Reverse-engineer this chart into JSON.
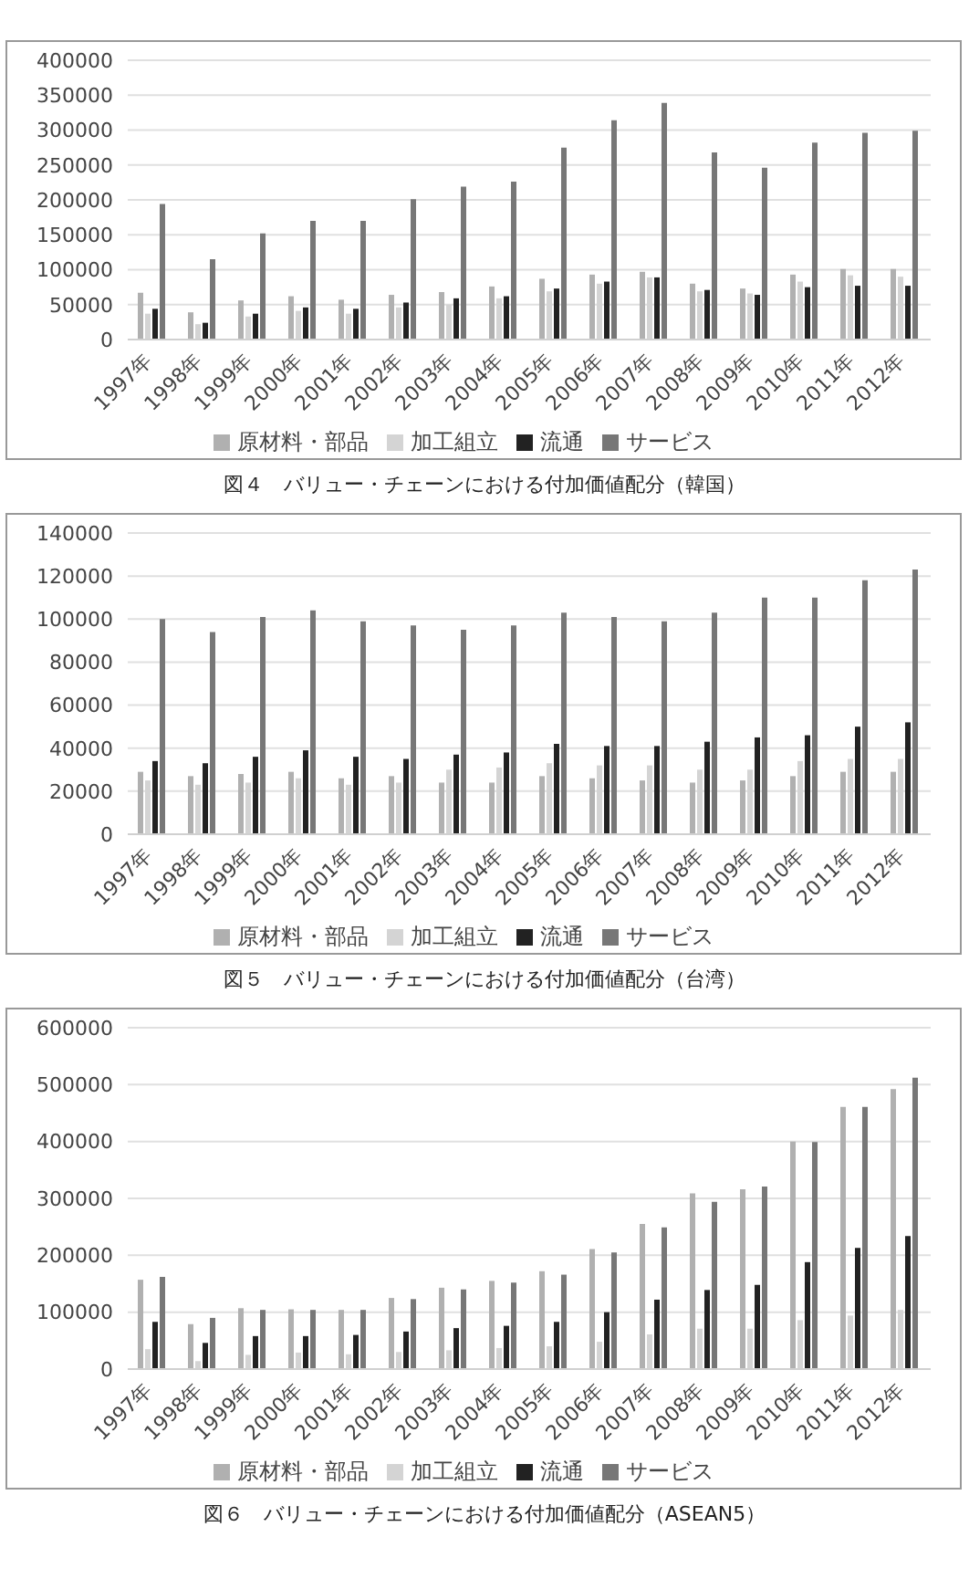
{
  "chart_data": [
    {
      "type": "bar",
      "categories": [
        "1997年",
        "1998年",
        "1999年",
        "2000年",
        "2001年",
        "2002年",
        "2003年",
        "2004年",
        "2005年",
        "2006年",
        "2007年",
        "2008年",
        "2009年",
        "2010年",
        "2011年",
        "2012年"
      ],
      "series": [
        {
          "name": "原材料・部品",
          "color": "#b0b0b0",
          "values": [
            67000,
            39000,
            56000,
            62000,
            57000,
            64000,
            68000,
            76000,
            87000,
            93000,
            97000,
            80000,
            73000,
            93000,
            101000,
            101000
          ]
        },
        {
          "name": "加工組立",
          "color": "#d4d4d4",
          "values": [
            37000,
            22000,
            33000,
            41000,
            37000,
            46000,
            50000,
            59000,
            69000,
            80000,
            89000,
            69000,
            66000,
            83000,
            92000,
            90000
          ]
        },
        {
          "name": "流通",
          "color": "#222222",
          "values": [
            44000,
            24000,
            37000,
            46000,
            44000,
            53000,
            59000,
            62000,
            73000,
            83000,
            89000,
            71000,
            64000,
            75000,
            77000,
            77000
          ]
        },
        {
          "name": "サービス",
          "color": "#777777",
          "values": [
            194000,
            115000,
            152000,
            170000,
            170000,
            201000,
            219000,
            226000,
            275000,
            314000,
            339000,
            268000,
            246000,
            282000,
            296000,
            299000
          ]
        }
      ],
      "ylim": [
        0,
        400000
      ],
      "yticks": [
        0,
        50000,
        100000,
        150000,
        200000,
        250000,
        300000,
        350000,
        400000
      ],
      "grid": "y",
      "legend": "bottom",
      "annotations": [
        "図４　バリュー・チェーンにおける付加価値配分（韓国）"
      ]
    },
    {
      "type": "bar",
      "categories": [
        "1997年",
        "1998年",
        "1999年",
        "2000年",
        "2001年",
        "2002年",
        "2003年",
        "2004年",
        "2005年",
        "2006年",
        "2007年",
        "2008年",
        "2009年",
        "2010年",
        "2011年",
        "2012年"
      ],
      "series": [
        {
          "name": "原材料・部品",
          "color": "#b0b0b0",
          "values": [
            29000,
            27000,
            28000,
            29000,
            26000,
            27000,
            24000,
            24000,
            27000,
            26000,
            25000,
            24000,
            25000,
            27000,
            29000,
            29000
          ]
        },
        {
          "name": "加工組立",
          "color": "#d4d4d4",
          "values": [
            25000,
            23000,
            24000,
            26000,
            23000,
            24000,
            30000,
            31000,
            33000,
            32000,
            32000,
            30000,
            30000,
            34000,
            35000,
            35000
          ]
        },
        {
          "name": "流通",
          "color": "#222222",
          "values": [
            34000,
            33000,
            36000,
            39000,
            36000,
            35000,
            37000,
            38000,
            42000,
            41000,
            41000,
            43000,
            45000,
            46000,
            50000,
            52000
          ]
        },
        {
          "name": "サービス",
          "color": "#777777",
          "values": [
            100000,
            94000,
            101000,
            104000,
            99000,
            97000,
            95000,
            97000,
            103000,
            101000,
            99000,
            103000,
            110000,
            110000,
            118000,
            123000
          ]
        }
      ],
      "ylim": [
        0,
        140000
      ],
      "yticks": [
        0,
        20000,
        40000,
        60000,
        80000,
        100000,
        120000,
        140000
      ],
      "grid": "y",
      "legend": "bottom",
      "annotations": [
        "図５　バリュー・チェーンにおける付加価値配分（台湾）"
      ]
    },
    {
      "type": "bar",
      "categories": [
        "1997年",
        "1998年",
        "1999年",
        "2000年",
        "2001年",
        "2002年",
        "2003年",
        "2004年",
        "2005年",
        "2006年",
        "2007年",
        "2008年",
        "2009年",
        "2010年",
        "2011年",
        "2012年"
      ],
      "series": [
        {
          "name": "原材料・部品",
          "color": "#b0b0b0",
          "values": [
            157000,
            79000,
            107000,
            105000,
            104000,
            125000,
            143000,
            155000,
            172000,
            211000,
            255000,
            309000,
            316000,
            400000,
            461000,
            492000
          ]
        },
        {
          "name": "加工組立",
          "color": "#d4d4d4",
          "values": [
            35000,
            14000,
            25000,
            29000,
            26000,
            30000,
            33000,
            37000,
            40000,
            48000,
            61000,
            71000,
            71000,
            86000,
            94000,
            104000
          ]
        },
        {
          "name": "流通",
          "color": "#222222",
          "values": [
            83000,
            46000,
            58000,
            58000,
            60000,
            66000,
            72000,
            76000,
            83000,
            100000,
            122000,
            139000,
            148000,
            188000,
            213000,
            234000
          ]
        },
        {
          "name": "サービス",
          "color": "#777777",
          "values": [
            162000,
            90000,
            104000,
            104000,
            104000,
            123000,
            140000,
            152000,
            166000,
            205000,
            249000,
            294000,
            321000,
            399000,
            461000,
            512000
          ]
        }
      ],
      "ylim": [
        0,
        600000
      ],
      "yticks": [
        0,
        100000,
        200000,
        300000,
        400000,
        500000,
        600000
      ],
      "grid": "y",
      "legend": "bottom",
      "annotations": [
        "図６　バリュー・チェーンにおける付加価値配分（ASEAN5）"
      ]
    }
  ]
}
